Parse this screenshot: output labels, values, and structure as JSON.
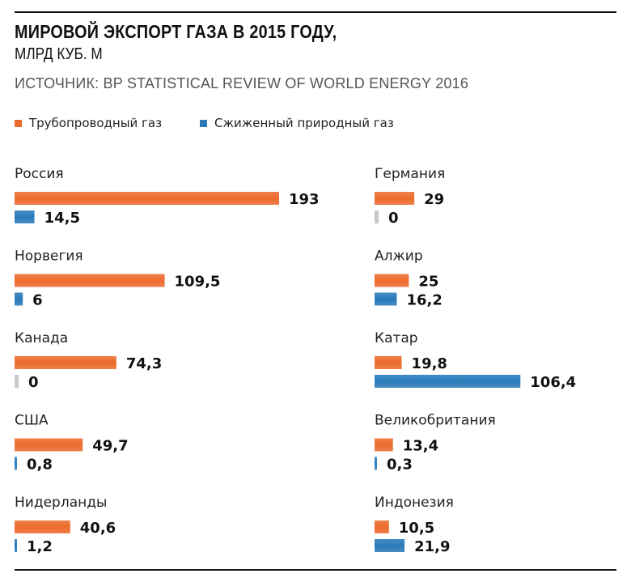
{
  "header": {
    "title": "МИРОВОЙ ЭКСПОРТ ГАЗА В 2015 ГОДУ,",
    "subtitle": "МЛРД КУБ. М",
    "source": "ИСТОЧНИК: BP STATISTICAL REVIEW OF WORLD ENERGY 2016"
  },
  "legend": {
    "pipeline": "Трубопроводный газ",
    "lng": "Сжиженный природный газ"
  },
  "colors": {
    "pipeline": "#ec6a2c",
    "lng": "#2879b9",
    "zero": "#c8c8c8"
  },
  "chart_data": {
    "type": "bar",
    "title": "МИРОВОЙ ЭКСПОРТ ГАЗА В 2015 ГОДУ, МЛРД КУБ. М",
    "categories": [
      "Россия",
      "Норвегия",
      "Канада",
      "США",
      "Нидерланды",
      "Германия",
      "Алжир",
      "Катар",
      "Великобритания",
      "Индонезия"
    ],
    "series": [
      {
        "name": "Трубопроводный газ",
        "values": [
          193,
          109.5,
          74.3,
          49.7,
          40.6,
          29,
          25,
          19.8,
          13.4,
          10.5
        ],
        "labels": [
          "193",
          "109,5",
          "74,3",
          "49,7",
          "40,6",
          "29",
          "25",
          "19,8",
          "13,4",
          "10,5"
        ]
      },
      {
        "name": "Сжиженный природный газ",
        "values": [
          14.5,
          6,
          0,
          0.8,
          1.2,
          0,
          16.2,
          106.4,
          0.3,
          21.9
        ],
        "labels": [
          "14,5",
          "6",
          "0",
          "0,8",
          "1,2",
          "0",
          "16,2",
          "106,4",
          "0,3",
          "21,9"
        ]
      }
    ],
    "xlim": [
      0,
      200
    ],
    "grid": false,
    "legend_position": "top-left"
  }
}
